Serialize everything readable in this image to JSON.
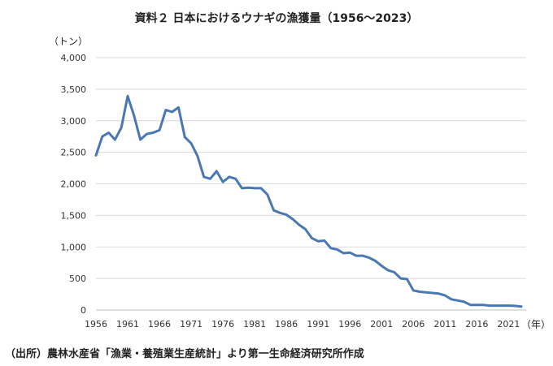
{
  "title": "資料２ 日本におけるウナギの漁獲量（1956～2023）",
  "source": "（出所）農林水産省「漁業・養殖業生産統計」より第一生命経済研究所作成",
  "chart_data": {
    "type": "line",
    "ylabel": "（トン）",
    "xlabel": "（年）",
    "ylim": [
      0,
      4000
    ],
    "xlim": [
      1956,
      2023
    ],
    "y_ticks": [
      "0",
      "500",
      "1,000",
      "1,500",
      "2,000",
      "2,500",
      "3,000",
      "3,500",
      "4,000"
    ],
    "x_ticks": [
      "1956",
      "1961",
      "1966",
      "1971",
      "1976",
      "1981",
      "1986",
      "1991",
      "1996",
      "2001",
      "2006",
      "2011",
      "2016",
      "2021"
    ],
    "grid": "horizontal",
    "line_color": "#4a78b5",
    "x": [
      1956,
      1957,
      1958,
      1959,
      1960,
      1961,
      1962,
      1963,
      1964,
      1965,
      1966,
      1967,
      1968,
      1969,
      1970,
      1971,
      1972,
      1973,
      1974,
      1975,
      1976,
      1977,
      1978,
      1979,
      1980,
      1981,
      1982,
      1983,
      1984,
      1985,
      1986,
      1987,
      1988,
      1989,
      1990,
      1991,
      1992,
      1993,
      1994,
      1995,
      1996,
      1997,
      1998,
      1999,
      2000,
      2001,
      2002,
      2003,
      2004,
      2005,
      2006,
      2007,
      2008,
      2009,
      2010,
      2011,
      2012,
      2013,
      2014,
      2015,
      2016,
      2017,
      2018,
      2019,
      2020,
      2021,
      2022,
      2023
    ],
    "values": [
      2450,
      2750,
      2810,
      2700,
      2890,
      3390,
      3080,
      2700,
      2790,
      2810,
      2850,
      3170,
      3140,
      3210,
      2740,
      2640,
      2440,
      2110,
      2080,
      2200,
      2030,
      2110,
      2080,
      1930,
      1940,
      1930,
      1930,
      1830,
      1580,
      1540,
      1510,
      1440,
      1350,
      1280,
      1140,
      1090,
      1100,
      980,
      960,
      900,
      910,
      860,
      860,
      830,
      780,
      700,
      630,
      600,
      500,
      490,
      310,
      290,
      280,
      270,
      260,
      230,
      170,
      150,
      130,
      80,
      80,
      80,
      70,
      70,
      70,
      70,
      65,
      55
    ]
  }
}
